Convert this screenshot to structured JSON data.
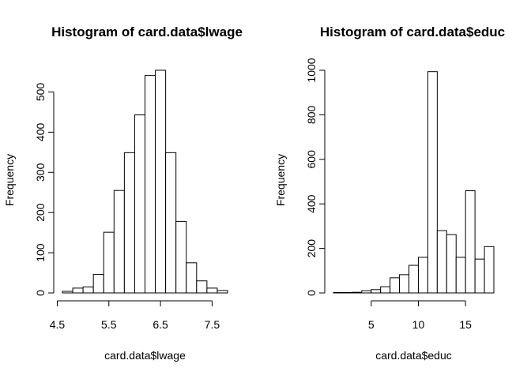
{
  "chart_data": [
    {
      "type": "bar",
      "title": "Histogram of card.data$lwage",
      "xlabel": "card.data$lwage",
      "ylabel": "Frequency",
      "bin_edges": [
        4.6,
        4.8,
        5.0,
        5.2,
        5.4,
        5.6,
        5.8,
        6.0,
        6.2,
        6.4,
        6.6,
        6.8,
        7.0,
        7.2,
        7.4,
        7.6,
        7.8
      ],
      "values": [
        4,
        12,
        15,
        46,
        151,
        255,
        349,
        443,
        541,
        554,
        349,
        178,
        75,
        30,
        12,
        6
      ],
      "xlim": [
        4.6,
        7.8
      ],
      "ylim": [
        0,
        554
      ],
      "xticks": [
        4.5,
        5.5,
        6.5,
        7.5
      ],
      "xtick_labels": [
        "4.5",
        "5.5",
        "6.5",
        "7.5"
      ],
      "yticks": [
        0,
        100,
        200,
        300,
        400,
        500
      ],
      "ytick_labels": [
        "0",
        "100",
        "200",
        "300",
        "400",
        "500"
      ],
      "grid": false
    },
    {
      "type": "bar",
      "title": "Histogram of card.data$educ",
      "xlabel": "card.data$educ",
      "ylabel": "Frequency",
      "bin_edges": [
        1,
        2,
        3,
        4,
        5,
        6,
        7,
        8,
        9,
        10,
        11,
        12,
        13,
        14,
        15,
        16,
        17,
        18
      ],
      "values": [
        2,
        2,
        3,
        10,
        15,
        28,
        68,
        82,
        124,
        160,
        994,
        280,
        262,
        160,
        459,
        152,
        208
      ],
      "xlim": [
        1,
        18
      ],
      "ylim": [
        0,
        1000
      ],
      "xticks": [
        5,
        10,
        15
      ],
      "xtick_labels": [
        "5",
        "10",
        "15"
      ],
      "yticks": [
        0,
        200,
        400,
        600,
        800,
        1000
      ],
      "ytick_labels": [
        "0",
        "200",
        "400",
        "600",
        "800",
        "1000"
      ],
      "grid": false
    }
  ]
}
